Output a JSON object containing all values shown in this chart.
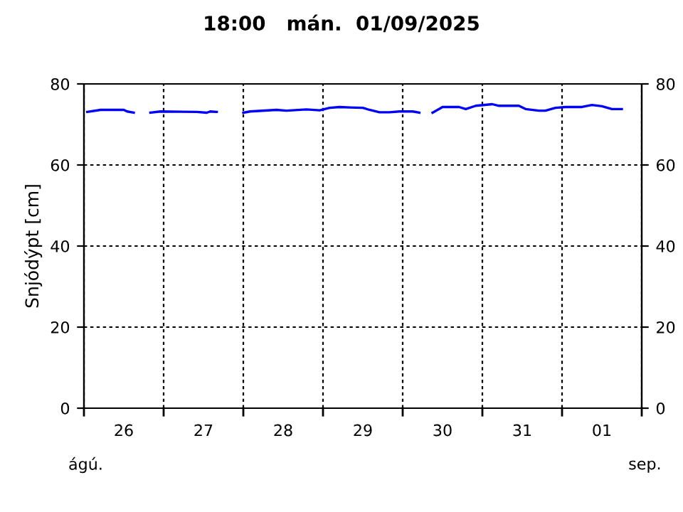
{
  "chart_data": {
    "type": "line",
    "title": "18:00   mán.  01/09/2025",
    "ylabel": "Snjódýpt [cm]",
    "x": [
      "2025-08-26T01:00",
      "2025-08-26T05:00",
      "2025-08-26T12:00",
      "2025-08-26T13:00",
      "2025-08-26T15:00",
      "2025-08-26T17:00",
      "2025-08-26T20:00",
      "2025-08-26T23:00",
      "2025-08-27T10:00",
      "2025-08-27T13:00",
      "2025-08-27T14:00",
      "2025-08-27T16:00",
      "2025-08-27T19:00",
      "2025-08-28T00:00",
      "2025-08-28T02:00",
      "2025-08-28T10:00",
      "2025-08-28T13:00",
      "2025-08-28T19:00",
      "2025-08-28T23:00",
      "2025-08-29T02:00",
      "2025-08-29T05:00",
      "2025-08-29T08:00",
      "2025-08-29T12:00",
      "2025-08-29T14:00",
      "2025-08-29T17:00",
      "2025-08-29T20:00",
      "2025-08-29T23:00",
      "2025-08-30T03:00",
      "2025-08-30T05:00",
      "2025-08-30T07:00",
      "2025-08-30T09:00",
      "2025-08-30T12:00",
      "2025-08-30T17:00",
      "2025-08-30T19:00",
      "2025-08-30T22:00",
      "2025-08-31T03:00",
      "2025-08-31T05:00",
      "2025-08-31T11:00",
      "2025-08-31T13:00",
      "2025-08-31T17:00",
      "2025-08-31T19:00",
      "2025-08-31T22:00",
      "2025-09-01T01:00",
      "2025-09-01T06:00",
      "2025-09-01T09:00",
      "2025-09-01T12:00",
      "2025-09-01T15:00",
      "2025-09-01T18:00"
    ],
    "series": [
      {
        "color": "#0000ff",
        "values": [
          73.1,
          73.6,
          73.6,
          73.2,
          72.9,
          null,
          72.9,
          73.2,
          73.1,
          72.9,
          73.2,
          73.1,
          null,
          72.9,
          73.2,
          73.6,
          73.4,
          73.7,
          73.5,
          74.1,
          74.3,
          74.2,
          74.1,
          73.6,
          73.0,
          73.0,
          73.2,
          73.2,
          72.9,
          null,
          72.9,
          74.3,
          74.3,
          73.8,
          74.6,
          75.0,
          74.6,
          74.6,
          73.8,
          73.4,
          73.4,
          74.1,
          74.3,
          74.3,
          74.8,
          74.5,
          73.8,
          73.8
        ]
      }
    ],
    "xlim": [
      "2025-08-26T00:00",
      "2025-09-02T00:00"
    ],
    "xticks": [
      {
        "value": "2025-08-26T00:00",
        "label": null
      },
      {
        "value": "2025-08-26T12:00",
        "label": "26"
      },
      {
        "value": "2025-08-27T00:00",
        "label": null
      },
      {
        "value": "2025-08-27T12:00",
        "label": "27"
      },
      {
        "value": "2025-08-28T00:00",
        "label": null
      },
      {
        "value": "2025-08-28T12:00",
        "label": "28"
      },
      {
        "value": "2025-08-29T00:00",
        "label": null
      },
      {
        "value": "2025-08-29T12:00",
        "label": "29"
      },
      {
        "value": "2025-08-30T00:00",
        "label": null
      },
      {
        "value": "2025-08-30T12:00",
        "label": "30"
      },
      {
        "value": "2025-08-31T00:00",
        "label": null
      },
      {
        "value": "2025-08-31T12:00",
        "label": "31"
      },
      {
        "value": "2025-09-01T00:00",
        "label": null
      },
      {
        "value": "2025-09-01T12:00",
        "label": "01"
      },
      {
        "value": "2025-09-02T00:00",
        "label": null
      }
    ],
    "ylim": [
      0,
      80
    ],
    "yticks": [
      0,
      20,
      40,
      60,
      80
    ],
    "y2lim": [
      0,
      80
    ],
    "y2ticks": [
      0,
      20,
      40,
      60,
      80
    ],
    "grid": true,
    "line_style": "solid",
    "marker": "none",
    "annotations": [
      "ágú.",
      "sep."
    ]
  }
}
